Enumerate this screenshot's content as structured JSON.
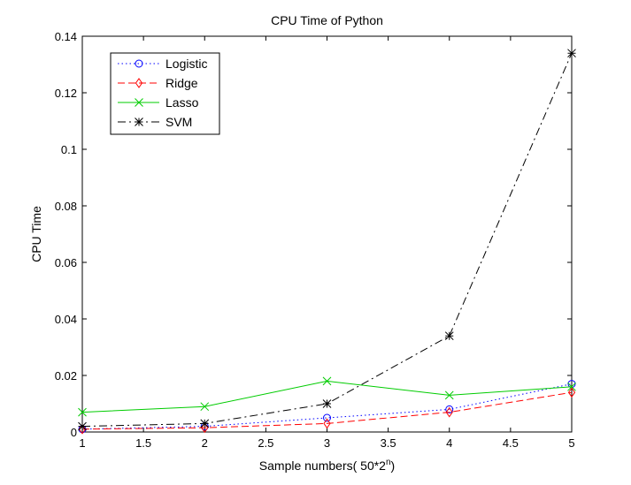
{
  "chart_data": {
    "type": "line",
    "title": "CPU Time of Python",
    "xlabel": "Sample numbers( 50*2",
    "xlabel_superscript": "n",
    "xlabel_suffix": ")",
    "ylabel": "CPU Time",
    "xlim": [
      1,
      5
    ],
    "ylim": [
      0,
      0.14
    ],
    "x_ticks": [
      1,
      1.5,
      2,
      2.5,
      3,
      3.5,
      4,
      4.5,
      5
    ],
    "x_tick_labels": [
      "1",
      "1.5",
      "2",
      "2.5",
      "3",
      "3.5",
      "4",
      "4.5",
      "5"
    ],
    "y_ticks": [
      0,
      0.02,
      0.04,
      0.06,
      0.08,
      0.1,
      0.12,
      0.14
    ],
    "y_tick_labels": [
      "0",
      "0.02",
      "0.04",
      "0.06",
      "0.08",
      "0.1",
      "0.12",
      "0.14"
    ],
    "grid": false,
    "legend_position": "top-left",
    "x": [
      1,
      2,
      3,
      4,
      5
    ],
    "series": [
      {
        "name": "Logistic",
        "values": [
          0.001,
          0.002,
          0.005,
          0.008,
          0.017
        ],
        "color": "#0000ff",
        "dash": "dotted",
        "marker": "circle"
      },
      {
        "name": "Ridge",
        "values": [
          0.001,
          0.0015,
          0.003,
          0.007,
          0.014
        ],
        "color": "#ff0000",
        "dash": "dashed",
        "marker": "diamond"
      },
      {
        "name": "Lasso",
        "values": [
          0.007,
          0.009,
          0.018,
          0.013,
          0.016
        ],
        "color": "#00cc00",
        "dash": "solid",
        "marker": "x"
      },
      {
        "name": "SVM",
        "values": [
          0.002,
          0.003,
          0.01,
          0.034,
          0.134
        ],
        "color": "#000000",
        "dash": "dashdot",
        "marker": "star"
      }
    ]
  }
}
